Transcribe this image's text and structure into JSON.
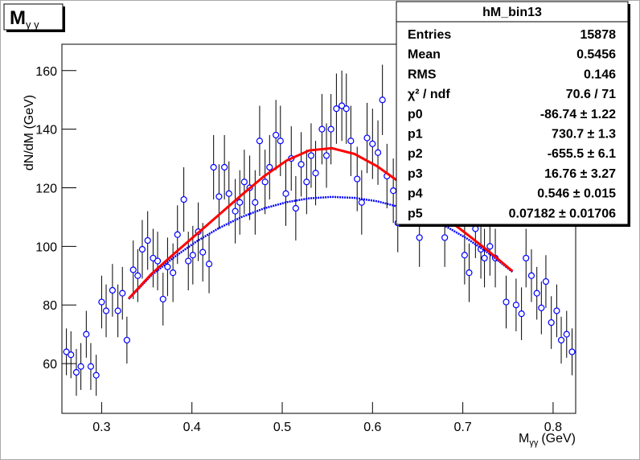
{
  "chart_data": {
    "type": "scatter",
    "title": "M",
    "title_sub": "γ γ",
    "y_label": "dN/dM (GeV)",
    "x_label": "M",
    "x_label_sub": "γγ",
    "x_label_unit": "(GeV)",
    "xlim": [
      0.256,
      0.825
    ],
    "ylim": [
      43,
      169
    ],
    "xticks": [
      0.3,
      0.4,
      0.5,
      0.6,
      0.7,
      0.8
    ],
    "yticks": [
      60,
      80,
      100,
      120,
      140,
      160
    ],
    "color": "#0000ff",
    "x": [
      0.261,
      0.266,
      0.272,
      0.277,
      0.283,
      0.288,
      0.294,
      0.3,
      0.305,
      0.312,
      0.318,
      0.323,
      0.328,
      0.335,
      0.34,
      0.345,
      0.351,
      0.357,
      0.362,
      0.368,
      0.373,
      0.379,
      0.384,
      0.391,
      0.396,
      0.401,
      0.407,
      0.412,
      0.419,
      0.424,
      0.43,
      0.436,
      0.441,
      0.448,
      0.453,
      0.458,
      0.464,
      0.47,
      0.475,
      0.481,
      0.486,
      0.493,
      0.498,
      0.504,
      0.51,
      0.515,
      0.521,
      0.527,
      0.532,
      0.537,
      0.544,
      0.549,
      0.554,
      0.56,
      0.566,
      0.571,
      0.576,
      0.583,
      0.588,
      0.594,
      0.6,
      0.606,
      0.611,
      0.616,
      0.623,
      0.628,
      0.652,
      0.68,
      0.702,
      0.707,
      0.714,
      0.72,
      0.724,
      0.73,
      0.736,
      0.748,
      0.759,
      0.765,
      0.77,
      0.776,
      0.782,
      0.787,
      0.792,
      0.798,
      0.804,
      0.809,
      0.815,
      0.821
    ],
    "values": [
      64,
      63,
      57,
      59,
      70,
      59,
      56,
      81,
      78,
      85,
      78,
      84,
      68,
      92,
      90,
      99,
      102,
      96,
      95,
      82,
      93,
      91,
      104,
      116,
      95,
      97,
      105,
      98,
      94,
      127,
      117,
      127,
      118,
      112,
      115,
      122,
      120,
      115,
      136,
      122,
      127,
      138,
      136,
      118,
      130,
      113,
      128,
      122,
      131,
      125,
      140,
      131,
      140,
      147,
      148,
      147,
      136,
      123,
      115,
      137,
      135,
      132,
      150,
      124,
      119,
      108,
      103,
      103,
      97,
      91,
      106,
      99,
      96,
      100,
      96,
      81,
      80,
      77,
      96,
      90,
      84,
      79,
      88,
      74,
      78,
      68,
      70,
      64
    ],
    "errors": [
      8,
      8,
      8,
      8,
      8,
      8,
      7,
      9,
      9,
      9,
      9,
      9,
      8,
      10,
      9,
      10,
      10,
      10,
      10,
      9,
      10,
      10,
      10,
      11,
      10,
      10,
      10,
      10,
      10,
      11,
      11,
      11,
      11,
      11,
      11,
      11,
      11,
      11,
      12,
      11,
      11,
      12,
      12,
      11,
      11,
      11,
      11,
      11,
      11,
      11,
      12,
      11,
      12,
      12,
      12,
      12,
      12,
      11,
      11,
      12,
      12,
      11,
      12,
      11,
      11,
      10,
      10,
      10,
      10,
      10,
      10,
      10,
      10,
      10,
      10,
      9,
      9,
      9,
      10,
      9,
      9,
      9,
      9,
      9,
      9,
      8,
      8,
      8
    ],
    "fit_x": [
      0.33,
      0.355,
      0.38,
      0.405,
      0.43,
      0.455,
      0.48,
      0.505,
      0.53,
      0.555,
      0.58,
      0.605,
      0.63,
      0.655,
      0.68,
      0.705,
      0.73,
      0.755
    ],
    "fits": [
      {
        "color": "#0000ff",
        "style": "dotted",
        "values": [
          82.01,
          90.05,
          96.27,
          101.67,
          106.26,
          110.02,
          112.97,
          115.09,
          116.4,
          116.89,
          116.56,
          115.4,
          113.43,
          110.64,
          107.04,
          102.6,
          97.35,
          91.29
        ]
      },
      {
        "color": "#ff0000",
        "style": "solid",
        "values": [
          82.19,
          90.54,
          97.43,
          104.11,
          110.81,
          117.53,
          123.96,
          129.33,
          132.75,
          133.52,
          131.55,
          127.37,
          121.89,
          115.94,
          109.98,
          104.05,
          97.98,
          91.53
        ]
      }
    ],
    "stats_box": {
      "title": "hM_bin13",
      "rows": [
        [
          "Entries",
          "15878"
        ],
        [
          "Mean",
          "0.5456"
        ],
        [
          "RMS",
          "0.146"
        ],
        [
          "χ² / ndf",
          "70.6 / 71"
        ],
        [
          "p0",
          "-86.74 ± 1.22"
        ],
        [
          "p1",
          "730.7 ± 1.3"
        ],
        [
          "p2",
          "-655.5 ± 6.1"
        ],
        [
          "p3",
          "16.76 ± 3.27"
        ],
        [
          "p4",
          "0.546 ± 0.015"
        ],
        [
          "p5",
          "0.07182 ± 0.01706"
        ]
      ]
    }
  }
}
